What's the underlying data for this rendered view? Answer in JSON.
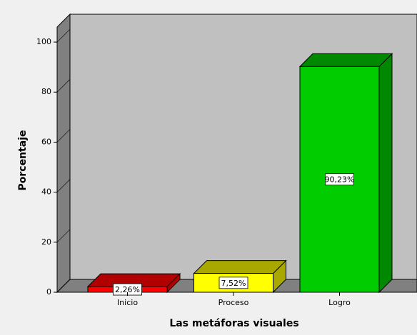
{
  "chart_data": {
    "type": "bar3d",
    "categories": [
      "Inicio",
      "Proceso",
      "Logro"
    ],
    "values": [
      2.26,
      7.52,
      90.23
    ],
    "value_labels": [
      "2,26%",
      "7,52%",
      "90,23%"
    ],
    "colors": [
      "#ff0000",
      "#ffff00",
      "#00cc00"
    ],
    "top_colors": [
      "#b00000",
      "#a8a800",
      "#008800"
    ],
    "y_label": "Porcentaje",
    "x_label": "Las metáforas visuales",
    "ylim": [
      0,
      106
    ],
    "yticks": [
      0,
      20,
      40,
      60,
      80,
      100
    ]
  }
}
